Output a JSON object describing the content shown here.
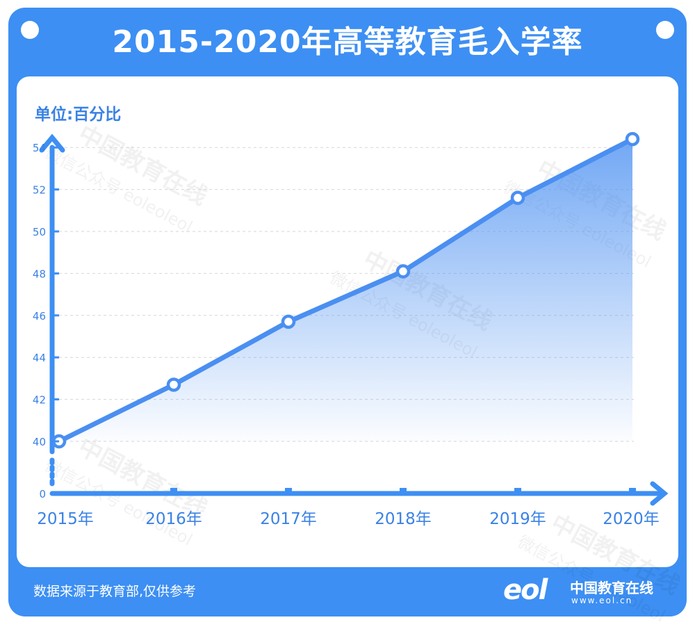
{
  "header": {
    "title": "2015-2020年高等教育毛入学率"
  },
  "unit_label": "单位:百分比",
  "footer": {
    "note": "数据来源于教育部,仅供参考",
    "logo_mark": "eol",
    "logo_name": "中国教育在线",
    "logo_url": "www.eol.cn"
  },
  "watermark": [
    "中国教育在线",
    "微信公众号 eoleoleol"
  ],
  "colors": {
    "background": "#3d8ff3",
    "line": "#4a8ff1",
    "axis": "#3d8ff3",
    "tick_text": "#3a82e4",
    "grid": "#d6d6d6"
  },
  "chart_data": {
    "type": "area",
    "title": "2015-2020年高等教育毛入学率",
    "unit": "单位:百分比",
    "categories": [
      "2015年",
      "2016年",
      "2017年",
      "2018年",
      "2019年",
      "2020年"
    ],
    "series": [
      {
        "values": [
          40.0,
          42.7,
          45.7,
          48.1,
          51.6,
          54.4
        ]
      }
    ],
    "y_ticks": [
      0,
      40,
      42,
      44,
      46,
      48,
      50,
      52,
      54
    ],
    "y_axis_break": [
      0,
      40
    ],
    "ylim": [
      40,
      55
    ],
    "grid": "horizontal-dashed",
    "legend": "none"
  }
}
